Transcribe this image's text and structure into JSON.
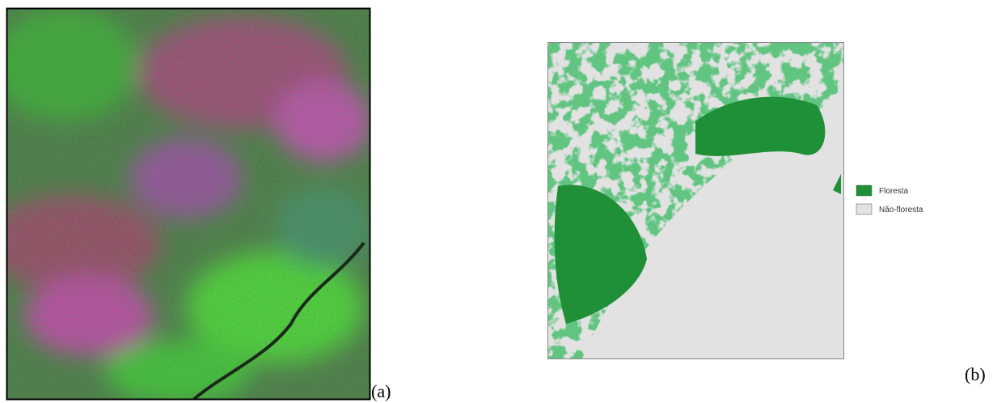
{
  "panels": [
    {
      "label": "(a)"
    },
    {
      "label": "(b)",
      "legend": [
        "Floresta",
        "Não-floresta"
      ]
    }
  ]
}
